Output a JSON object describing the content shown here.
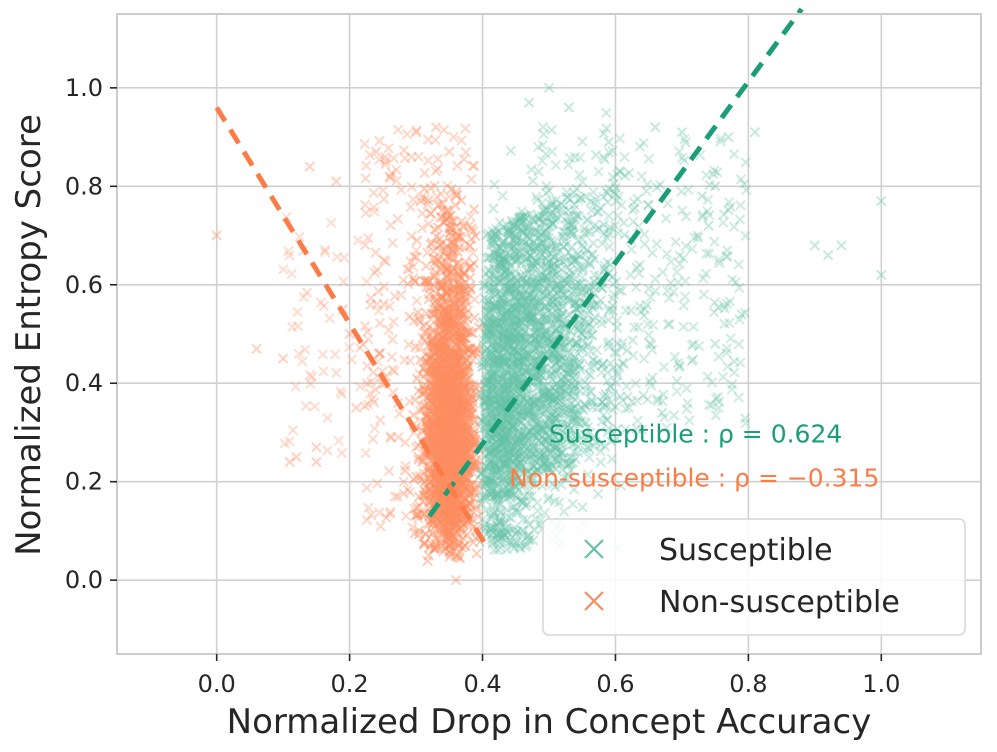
{
  "chart_data": {
    "type": "scatter",
    "xlabel": "Normalized Drop in Concept Accuracy",
    "ylabel": "Normalized Entropy Score",
    "xlim": [
      -0.15,
      1.15
    ],
    "ylim": [
      -0.15,
      1.15
    ],
    "x_ticks": [
      "0.0",
      "0.2",
      "0.4",
      "0.6",
      "0.8",
      "1.0"
    ],
    "y_ticks": [
      "0.0",
      "0.2",
      "0.4",
      "0.6",
      "0.8",
      "1.0"
    ],
    "grid": true,
    "marker": "x",
    "legend_position": "lower-right",
    "series": [
      {
        "name": "Susceptible",
        "color": "#66c2a5",
        "line_color": "#1b9e77",
        "center_x": 0.43,
        "center_y": 0.42,
        "approx_count": 5000,
        "fit_line": {
          "x": [
            0.32,
            0.88
          ],
          "y": [
            0.13,
            1.16
          ]
        },
        "rho_label": "Susceptible    : ρ = 0.624",
        "highlight_points": [
          [
            0.47,
            0.97
          ],
          [
            0.5,
            1.0
          ],
          [
            0.53,
            0.96
          ],
          [
            0.59,
            0.89
          ],
          [
            0.66,
            0.92
          ],
          [
            0.7,
            0.91
          ],
          [
            0.77,
            0.9
          ],
          [
            0.81,
            0.91
          ],
          [
            0.73,
            0.78
          ],
          [
            0.75,
            0.8
          ],
          [
            0.74,
            0.72
          ],
          [
            1.0,
            0.77
          ],
          [
            0.9,
            0.68
          ],
          [
            0.94,
            0.68
          ],
          [
            0.92,
            0.66
          ],
          [
            1.0,
            0.62
          ],
          [
            0.79,
            0.54
          ],
          [
            0.75,
            0.48
          ],
          [
            0.62,
            0.35
          ],
          [
            0.67,
            0.34
          ],
          [
            0.46,
            0.09
          ]
        ]
      },
      {
        "name": "Non-susceptible",
        "color": "#fc8d62",
        "line_color": "#fc7c47",
        "center_x": 0.35,
        "center_y": 0.33,
        "approx_count": 2200,
        "fit_line": {
          "x": [
            0.0,
            0.41
          ],
          "y": [
            0.96,
            0.06
          ]
        },
        "rho_label": "Non-susceptible : ρ = −0.315",
        "highlight_points": [
          [
            0.0,
            0.7
          ],
          [
            0.06,
            0.47
          ],
          [
            0.1,
            0.45
          ],
          [
            0.11,
            0.24
          ],
          [
            0.12,
            0.25
          ],
          [
            0.14,
            0.84
          ],
          [
            0.15,
            0.27
          ],
          [
            0.15,
            0.24
          ],
          [
            0.18,
            0.81
          ],
          [
            0.19,
            0.55
          ],
          [
            0.2,
            0.5
          ],
          [
            0.21,
            0.35
          ],
          [
            0.24,
            0.87
          ],
          [
            0.26,
            0.82
          ],
          [
            0.3,
            0.91
          ],
          [
            0.33,
            0.92
          ],
          [
            0.35,
            0.87
          ],
          [
            0.31,
            0.16
          ],
          [
            0.36,
            0.0
          ],
          [
            0.32,
            0.45
          ]
        ]
      }
    ],
    "annotations": [
      {
        "text": "Susceptible    : ρ = 0.624",
        "x": 0.5,
        "y": 0.28,
        "color": "#1b9e77"
      },
      {
        "text": "Non-susceptible : ρ = −0.315",
        "x": 0.44,
        "y": 0.19,
        "color": "#fc7c47"
      }
    ]
  }
}
